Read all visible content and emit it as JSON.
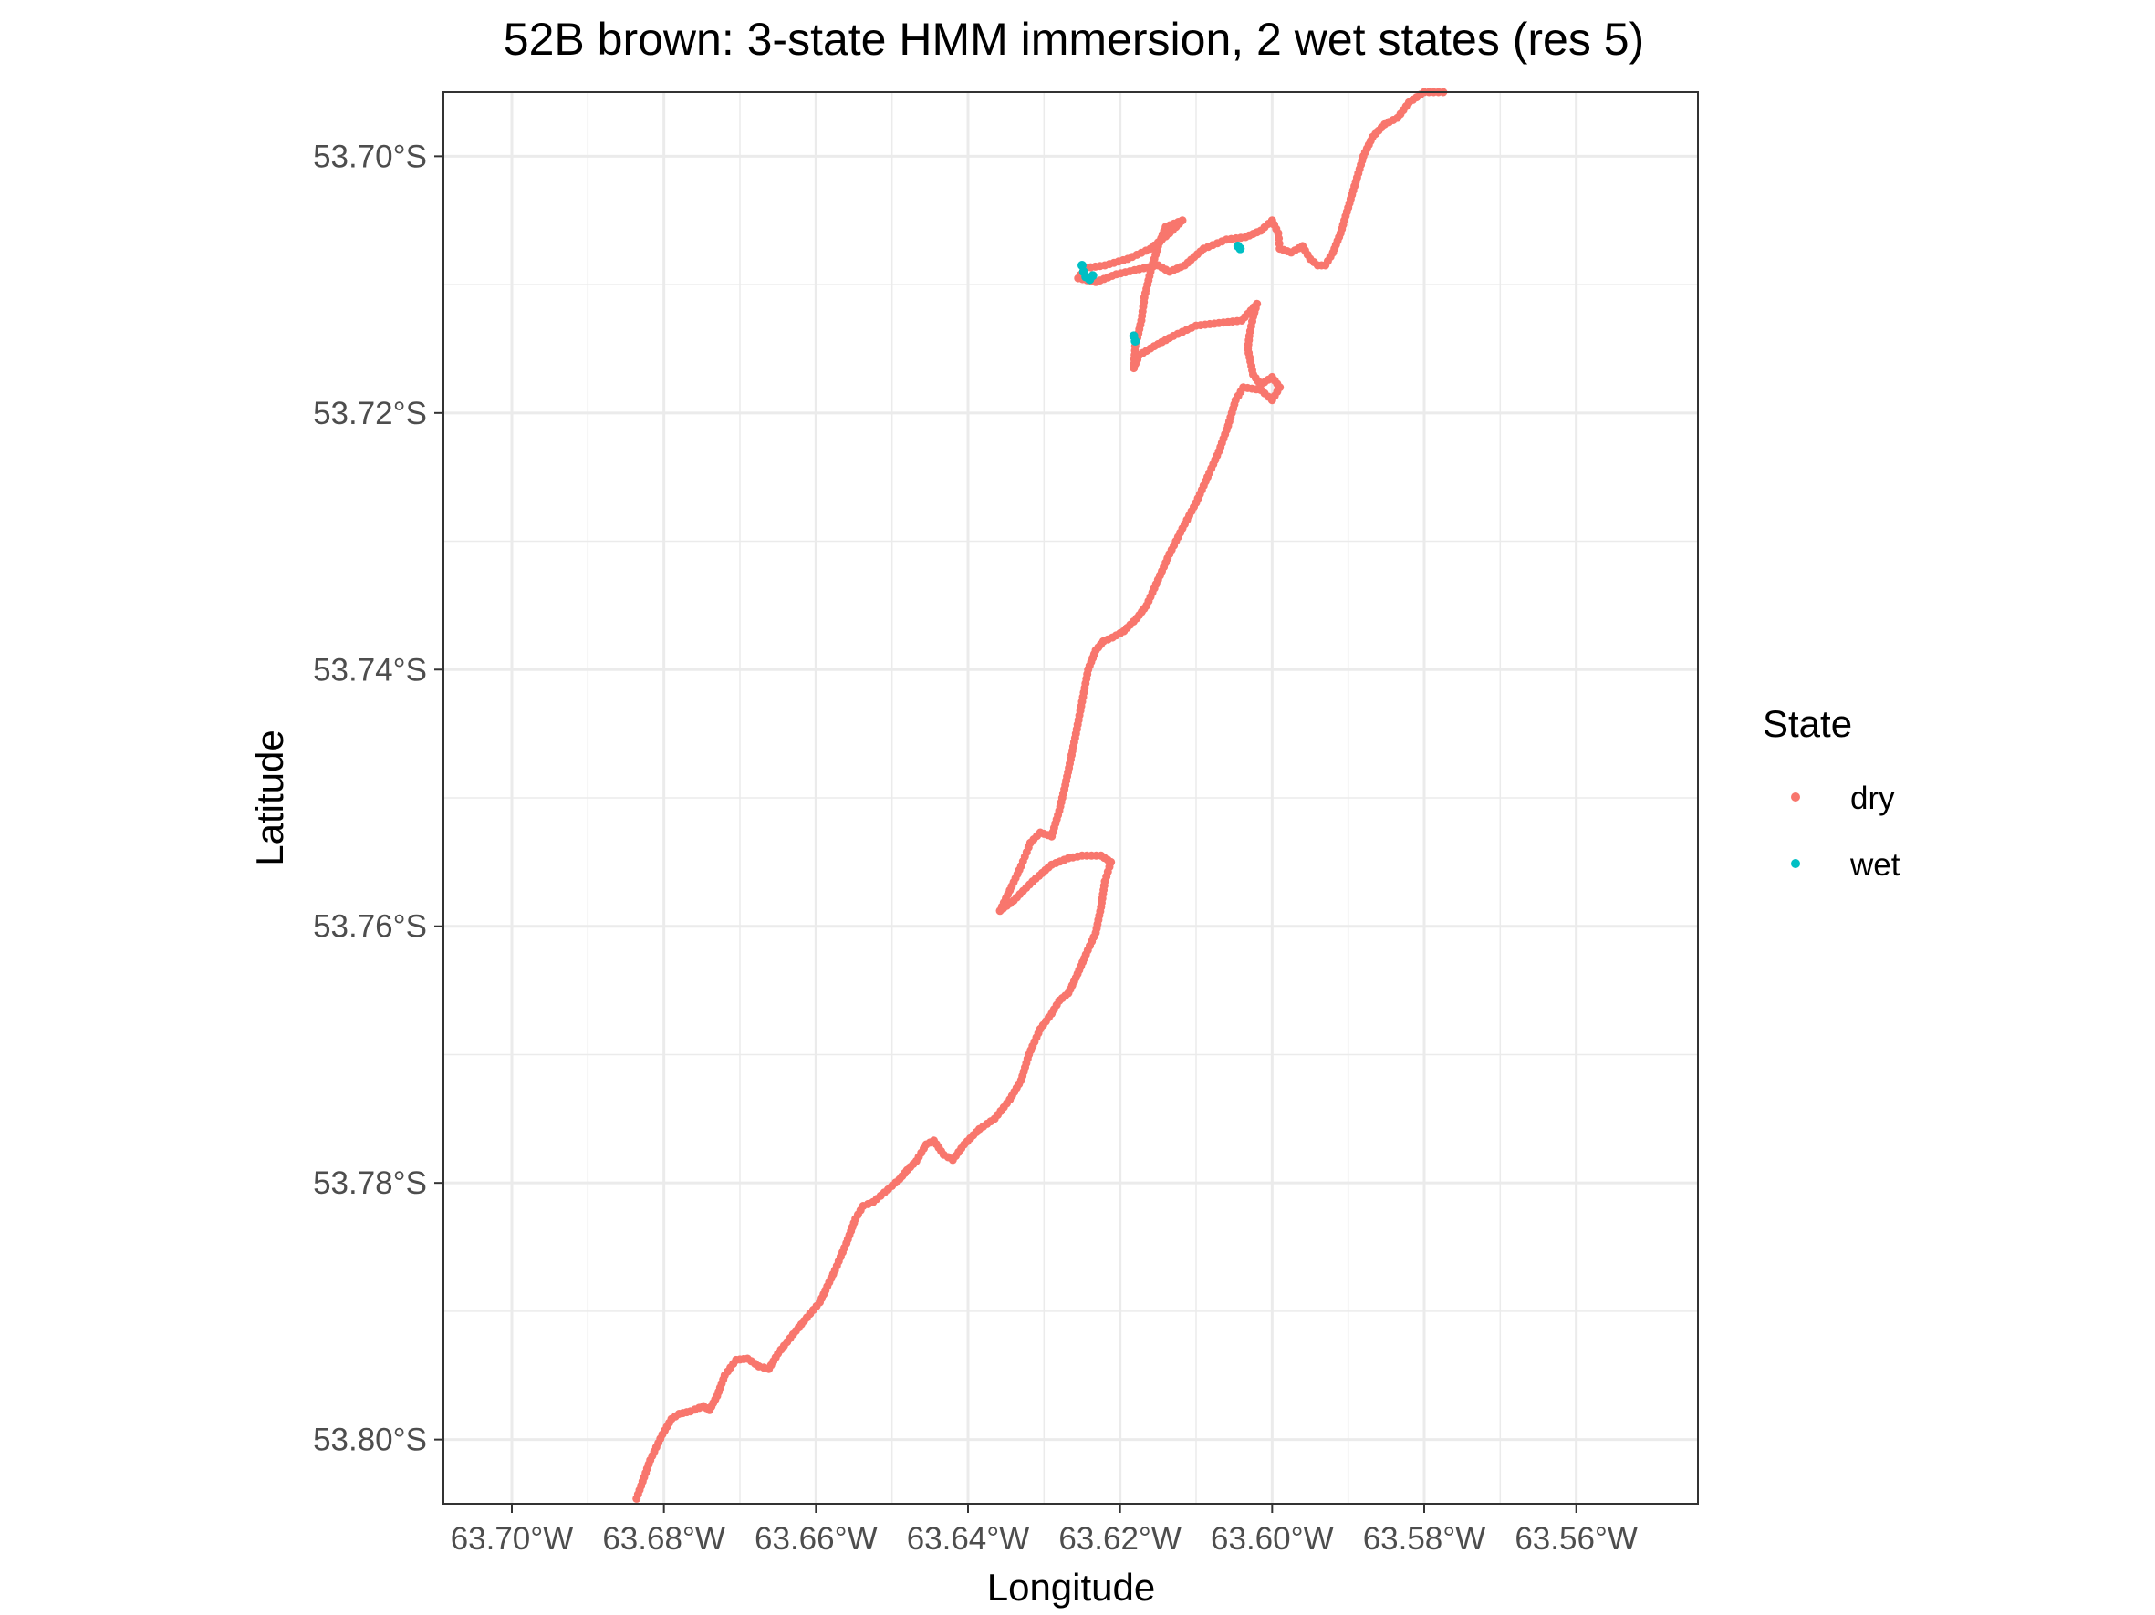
{
  "chart_data": {
    "type": "scatter",
    "title": "52B brown: 3-state HMM immersion, 2 wet states (res 5)",
    "xlabel": "Longitude",
    "ylabel": "Latitude",
    "xlim": [
      -63.709,
      -63.544
    ],
    "ylim": [
      -53.805,
      -53.695
    ],
    "x_ticks": [
      -63.7,
      -63.68,
      -63.66,
      -63.64,
      -63.62,
      -63.6,
      -63.58,
      -63.56
    ],
    "x_tick_labels": [
      "63.70°W",
      "63.68°W",
      "63.66°W",
      "63.64°W",
      "63.62°W",
      "63.60°W",
      "63.58°W",
      "63.56°W"
    ],
    "y_ticks": [
      -53.7,
      -53.72,
      -53.74,
      -53.76,
      -53.78,
      -53.8
    ],
    "y_tick_labels": [
      "53.70°S",
      "53.72°S",
      "53.74°S",
      "53.76°S",
      "53.78°S",
      "53.80°S"
    ],
    "grid": true,
    "legend": {
      "title": "State",
      "position": "right",
      "entries": [
        {
          "label": "dry",
          "color": "#F8766D"
        },
        {
          "label": "wet",
          "color": "#00BFC4"
        }
      ]
    },
    "series": [
      {
        "name": "dry",
        "color": "#F8766D",
        "points": [
          [
            -63.6836,
            -53.8046
          ],
          [
            -63.6818,
            -53.8016
          ],
          [
            -63.6802,
            -53.7996
          ],
          [
            -63.679,
            -53.7984
          ],
          [
            -63.678,
            -53.798
          ],
          [
            -63.6765,
            -53.7978
          ],
          [
            -63.6748,
            -53.7974
          ],
          [
            -63.674,
            -53.7977
          ],
          [
            -63.673,
            -53.7966
          ],
          [
            -63.672,
            -53.795
          ],
          [
            -63.6705,
            -53.7938
          ],
          [
            -63.669,
            -53.7937
          ],
          [
            -63.6675,
            -53.7943
          ],
          [
            -63.6662,
            -53.7945
          ],
          [
            -63.665,
            -53.7933
          ],
          [
            -63.663,
            -53.7918
          ],
          [
            -63.6612,
            -53.7905
          ],
          [
            -63.6595,
            -53.7893
          ],
          [
            -63.6575,
            -53.7868
          ],
          [
            -63.656,
            -53.7847
          ],
          [
            -63.6548,
            -53.7828
          ],
          [
            -63.6538,
            -53.7818
          ],
          [
            -63.6525,
            -53.7815
          ],
          [
            -63.6505,
            -53.7805
          ],
          [
            -63.649,
            -53.7797
          ],
          [
            -63.648,
            -53.779
          ],
          [
            -63.6468,
            -53.7783
          ],
          [
            -63.6455,
            -53.777
          ],
          [
            -63.6445,
            -53.7767
          ],
          [
            -63.6432,
            -53.7778
          ],
          [
            -63.642,
            -53.7782
          ],
          [
            -63.6405,
            -53.777
          ],
          [
            -63.6385,
            -53.7758
          ],
          [
            -63.6365,
            -53.775
          ],
          [
            -63.6345,
            -53.7735
          ],
          [
            -63.633,
            -53.772
          ],
          [
            -63.632,
            -53.77
          ],
          [
            -63.6305,
            -53.768
          ],
          [
            -63.629,
            -53.7668
          ],
          [
            -63.628,
            -53.7658
          ],
          [
            -63.6268,
            -53.7652
          ],
          [
            -63.6258,
            -53.764
          ],
          [
            -63.6245,
            -53.7622
          ],
          [
            -63.6232,
            -53.7605
          ],
          [
            -63.6225,
            -53.7585
          ],
          [
            -63.622,
            -53.7565
          ],
          [
            -63.6212,
            -53.755
          ],
          [
            -63.6225,
            -53.7545
          ],
          [
            -63.625,
            -53.7545
          ],
          [
            -63.6268,
            -53.7547
          ],
          [
            -63.629,
            -53.7552
          ],
          [
            -63.6315,
            -53.7565
          ],
          [
            -63.634,
            -53.758
          ],
          [
            -63.6358,
            -53.7588
          ],
          [
            -63.6345,
            -53.7572
          ],
          [
            -63.633,
            -53.7553
          ],
          [
            -63.6318,
            -53.7535
          ],
          [
            -63.6305,
            -53.7527
          ],
          [
            -63.629,
            -53.753
          ],
          [
            -63.628,
            -53.751
          ],
          [
            -63.6272,
            -53.749
          ],
          [
            -63.6265,
            -53.747
          ],
          [
            -63.6258,
            -53.745
          ],
          [
            -63.625,
            -53.7425
          ],
          [
            -63.6242,
            -53.74
          ],
          [
            -63.6232,
            -53.7385
          ],
          [
            -63.6222,
            -53.7378
          ],
          [
            -63.621,
            -53.7375
          ],
          [
            -63.6195,
            -53.737
          ],
          [
            -63.6178,
            -53.736
          ],
          [
            -63.6165,
            -53.735
          ],
          [
            -63.615,
            -53.733
          ],
          [
            -63.6135,
            -53.731
          ],
          [
            -63.6118,
            -53.729
          ],
          [
            -63.61,
            -53.727
          ],
          [
            -63.6085,
            -53.725
          ],
          [
            -63.607,
            -53.723
          ],
          [
            -63.6058,
            -53.721
          ],
          [
            -63.6048,
            -53.719
          ],
          [
            -63.6038,
            -53.718
          ],
          [
            -63.6015,
            -53.7182
          ],
          [
            -63.6,
            -53.719
          ],
          [
            -63.599,
            -53.718
          ],
          [
            -63.6,
            -53.7172
          ],
          [
            -63.6015,
            -53.7178
          ],
          [
            -63.6025,
            -53.717
          ],
          [
            -63.6032,
            -53.715
          ],
          [
            -63.603,
            -53.714
          ],
          [
            -63.6025,
            -53.7125
          ],
          [
            -63.602,
            -53.7115
          ],
          [
            -63.604,
            -53.7128
          ],
          [
            -63.607,
            -53.713
          ],
          [
            -63.61,
            -53.7132
          ],
          [
            -63.613,
            -53.714
          ],
          [
            -63.6155,
            -53.7148
          ],
          [
            -63.6175,
            -53.7155
          ],
          [
            -63.6182,
            -53.7165
          ],
          [
            -63.618,
            -53.7148
          ],
          [
            -63.6172,
            -53.7128
          ],
          [
            -63.6168,
            -53.711
          ],
          [
            -63.616,
            -53.709
          ],
          [
            -63.615,
            -53.707
          ],
          [
            -63.614,
            -53.7055
          ],
          [
            -63.6118,
            -53.705
          ],
          [
            -63.6135,
            -53.706
          ],
          [
            -63.616,
            -53.7072
          ],
          [
            -63.619,
            -53.708
          ],
          [
            -63.622,
            -53.7085
          ],
          [
            -63.6245,
            -53.7087
          ],
          [
            -63.6255,
            -53.7095
          ],
          [
            -63.6232,
            -53.7098
          ],
          [
            -63.6205,
            -53.7092
          ],
          [
            -63.6175,
            -53.7088
          ],
          [
            -63.615,
            -53.7085
          ],
          [
            -63.6135,
            -53.709
          ],
          [
            -63.6115,
            -53.7085
          ],
          [
            -63.609,
            -53.7072
          ],
          [
            -63.606,
            -53.7065
          ],
          [
            -63.6035,
            -53.7063
          ],
          [
            -63.6015,
            -53.7058
          ],
          [
            -63.6,
            -53.705
          ],
          [
            -63.5992,
            -53.706
          ],
          [
            -63.599,
            -53.7072
          ],
          [
            -63.5975,
            -53.7075
          ],
          [
            -63.596,
            -53.707
          ],
          [
            -63.595,
            -53.708
          ],
          [
            -63.594,
            -53.7085
          ],
          [
            -63.593,
            -53.7085
          ],
          [
            -63.592,
            -53.7075
          ],
          [
            -63.591,
            -53.706
          ],
          [
            -63.59,
            -53.704
          ],
          [
            -63.589,
            -53.702
          ],
          [
            -63.588,
            -53.7
          ],
          [
            -63.5868,
            -53.6985
          ],
          [
            -63.5852,
            -53.6975
          ],
          [
            -63.5835,
            -53.697
          ],
          [
            -63.582,
            -53.6958
          ],
          [
            -63.58,
            -53.695
          ],
          [
            -63.5775,
            -53.695
          ]
        ]
      },
      {
        "name": "wet",
        "color": "#00BFC4",
        "points": [
          [
            -63.625,
            -53.7085
          ],
          [
            -63.6248,
            -53.709
          ],
          [
            -63.6245,
            -53.7094
          ],
          [
            -63.624,
            -53.7096
          ],
          [
            -63.6236,
            -53.7093
          ],
          [
            -63.6182,
            -53.714
          ],
          [
            -63.618,
            -53.7144
          ],
          [
            -63.6045,
            -53.707
          ],
          [
            -63.6042,
            -53.7072
          ]
        ]
      }
    ]
  }
}
